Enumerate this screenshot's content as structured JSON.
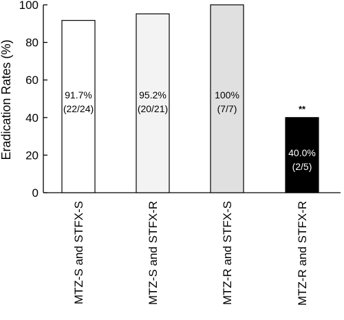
{
  "chart_data": {
    "type": "bar",
    "title": "",
    "xlabel": "",
    "ylabel": "Eradication Rates (%)",
    "ylim": [
      0,
      100
    ],
    "yticks": [
      0,
      20,
      40,
      60,
      80,
      100
    ],
    "grid": false,
    "legend": "none",
    "categories": [
      "MTZ-S and STFX-S",
      "MTZ-S and STFX-R",
      "MTZ-R and STFX-S",
      "MTZ-R and STFX-R"
    ],
    "values": [
      91.7,
      95.2,
      100,
      40.0
    ],
    "value_labels": [
      "91.7%",
      "95.2%",
      "100%",
      "40.0%"
    ],
    "count_labels": [
      "(22/24)",
      "(20/21)",
      "(7/7)",
      "(2/5)"
    ],
    "bar_colors": [
      "#ffffff",
      "#f3f3f3",
      "#e0e0e0",
      "#000000"
    ],
    "label_colors": [
      "#000000",
      "#000000",
      "#000000",
      "#ffffff"
    ],
    "annotations": [
      {
        "category": "MTZ-R and STFX-R",
        "text": "**"
      }
    ]
  }
}
